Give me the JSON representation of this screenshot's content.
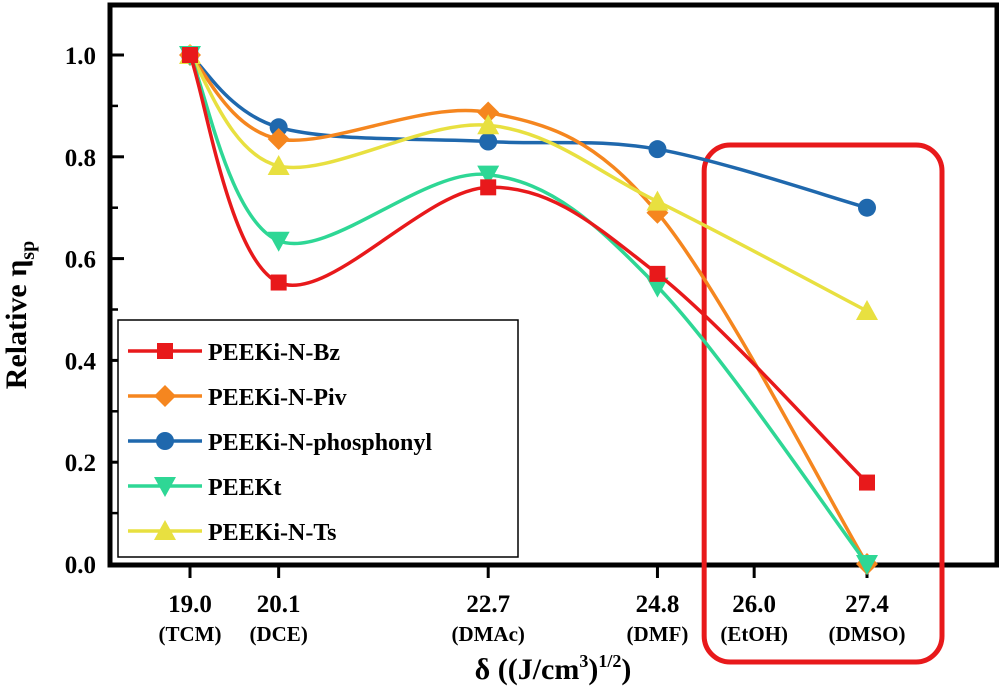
{
  "chart_data": {
    "type": "line",
    "xlabel": "δ ((J/cm",
    "xlabel_sup1": "3",
    "xlabel_mid": ")",
    "xlabel_sup2": "1/2",
    "xlabel_end": ")",
    "ylabel": "Relative η",
    "ylabel_sub": "sp",
    "ylim": [
      0,
      1.0
    ],
    "y_ticks": [
      "0.0",
      "0.2",
      "0.4",
      "0.6",
      "0.8",
      "1.0"
    ],
    "x": [
      19.0,
      20.1,
      22.7,
      24.8,
      27.4
    ],
    "x_ticks": [
      {
        "value": 19.0,
        "label": "19.0",
        "sublabel": "(TCM)"
      },
      {
        "value": 20.1,
        "label": "20.1",
        "sublabel": "(DCE)"
      },
      {
        "value": 22.7,
        "label": "22.7",
        "sublabel": "(DMAc)"
      },
      {
        "value": 24.8,
        "label": "24.8",
        "sublabel": "(DMF)"
      },
      {
        "value": 26.0,
        "label": "26.0",
        "sublabel": "(EtOH)"
      },
      {
        "value": 27.4,
        "label": "27.4",
        "sublabel": "(DMSO)"
      }
    ],
    "series": [
      {
        "name": "PEEKi-N-Bz",
        "color": "#e8191b",
        "marker": "square",
        "values": [
          1.0,
          0.553,
          0.74,
          0.57,
          0.16
        ]
      },
      {
        "name": "PEEKi-N-Piv",
        "color": "#f5861f",
        "marker": "diamond",
        "values": [
          1.0,
          0.835,
          0.887,
          0.69,
          0.0
        ]
      },
      {
        "name": "PEEKi-N-phosphonyl",
        "color": "#1f68ad",
        "marker": "circle",
        "values": [
          1.0,
          0.858,
          0.83,
          0.815,
          0.7
        ]
      },
      {
        "name": "PEEKt",
        "color": "#2ed795",
        "marker": "triangle-down",
        "values": [
          1.0,
          0.635,
          0.765,
          0.545,
          0.0
        ]
      },
      {
        "name": "PEEKi-N-Ts",
        "color": "#e8e040",
        "marker": "triangle-up",
        "values": [
          1.0,
          0.782,
          0.862,
          0.712,
          0.497
        ]
      }
    ],
    "highlight": {
      "color": "#e8191b",
      "x_range": [
        26.0,
        27.4
      ]
    },
    "legend_position": "bottom-left",
    "grid": false
  }
}
